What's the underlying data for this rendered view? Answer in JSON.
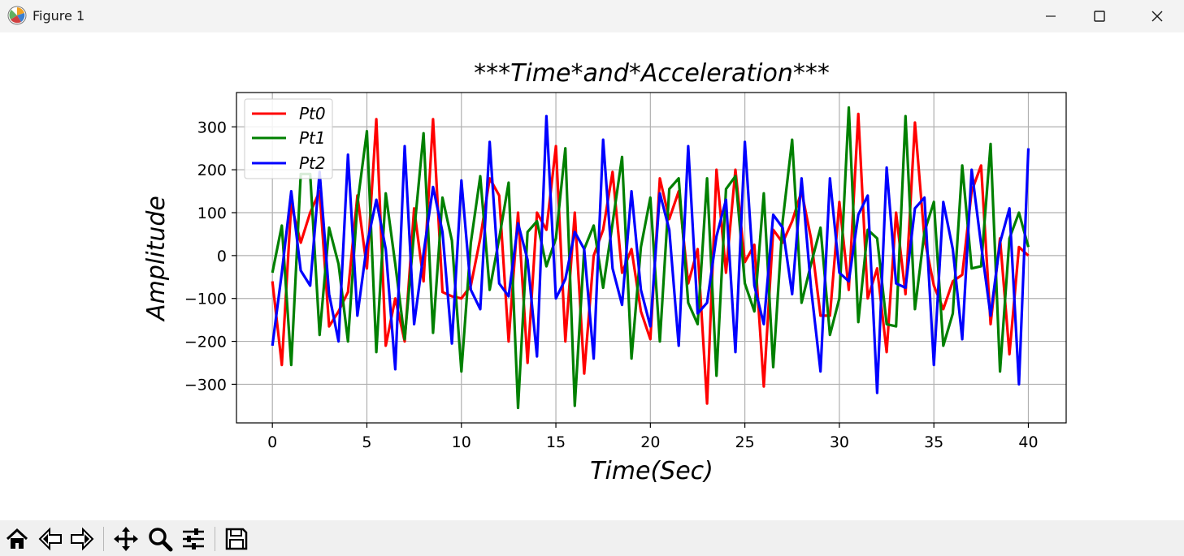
{
  "window": {
    "title": "Figure 1",
    "icon": "matplotlib-icon",
    "controls": [
      "minimize-icon",
      "maximize-icon",
      "close-icon"
    ]
  },
  "toolbar": {
    "buttons": [
      "home-icon",
      "back-icon",
      "forward-icon",
      "pan-icon",
      "zoom-icon",
      "configure-subplots-icon",
      "save-icon"
    ]
  },
  "chart_data": {
    "type": "line",
    "title": "***Time*and*Acceleration***",
    "xlabel": "Time(Sec)",
    "ylabel": "Amplitude",
    "xlim": [
      -1.9,
      42
    ],
    "ylim": [
      -390,
      380
    ],
    "xticks": [
      0,
      5,
      10,
      15,
      20,
      25,
      30,
      35,
      40
    ],
    "yticks": [
      -300,
      -200,
      -100,
      0,
      100,
      200,
      300
    ],
    "xtick_labels": [
      "0",
      "5",
      "10",
      "15",
      "20",
      "25",
      "30",
      "35",
      "40"
    ],
    "ytick_labels": [
      "−300",
      "−200",
      "−100",
      "0",
      "100",
      "200",
      "300"
    ],
    "grid": true,
    "legend_position": "upper-left",
    "x": [
      0,
      0.5,
      1,
      1.5,
      2,
      2.5,
      3,
      3.5,
      4,
      4.5,
      5,
      5.5,
      6,
      6.5,
      7,
      7.5,
      8,
      8.5,
      9,
      9.5,
      10,
      10.5,
      11,
      11.5,
      12,
      12.5,
      13,
      13.5,
      14,
      14.5,
      15,
      15.5,
      16,
      16.5,
      17,
      17.5,
      18,
      18.5,
      19,
      19.5,
      20,
      20.5,
      21,
      21.5,
      22,
      22.5,
      23,
      23.5,
      24,
      24.5,
      25,
      25.5,
      26,
      26.5,
      27,
      27.5,
      28,
      28.5,
      29,
      29.5,
      30,
      30.5,
      31,
      31.5,
      32,
      32.5,
      33,
      33.5,
      34,
      34.5,
      35,
      35.5,
      36,
      36.5,
      37,
      37.5,
      38,
      38.5,
      39,
      39.5,
      40
    ],
    "series": [
      {
        "name": "Pt0",
        "color": "#ff0000",
        "values": [
          -60,
          -255,
          120,
          30,
          100,
          150,
          -165,
          -130,
          -85,
          140,
          -30,
          318,
          -210,
          -100,
          -200,
          110,
          -60,
          318,
          -85,
          -95,
          -100,
          -70,
          40,
          180,
          140,
          -200,
          100,
          -250,
          100,
          60,
          255,
          -200,
          100,
          -275,
          0,
          60,
          195,
          -40,
          15,
          -130,
          -195,
          180,
          85,
          150,
          -65,
          15,
          -345,
          200,
          -40,
          200,
          -15,
          25,
          -305,
          60,
          30,
          80,
          150,
          40,
          -140,
          -140,
          125,
          -80,
          330,
          -100,
          -30,
          -225,
          100,
          -90,
          310,
          40,
          -70,
          -125,
          -60,
          -45,
          150,
          210,
          -160,
          40,
          -230,
          20,
          0
        ]
      },
      {
        "name": "Pt1",
        "color": "#008000",
        "values": [
          -40,
          70,
          -255,
          190,
          190,
          -185,
          65,
          -20,
          -200,
          120,
          290,
          -225,
          145,
          -20,
          -195,
          55,
          285,
          -180,
          135,
          35,
          -270,
          30,
          185,
          -80,
          40,
          170,
          -355,
          55,
          80,
          -25,
          40,
          250,
          -350,
          15,
          70,
          -75,
          75,
          230,
          -240,
          20,
          135,
          -200,
          155,
          180,
          -110,
          -160,
          180,
          -280,
          155,
          185,
          -65,
          -130,
          145,
          -260,
          80,
          270,
          -110,
          -20,
          65,
          -185,
          -100,
          345,
          -155,
          60,
          40,
          -160,
          -165,
          325,
          -125,
          55,
          125,
          -210,
          -135,
          210,
          -30,
          -25,
          260,
          -270,
          40,
          100,
          20
        ]
      },
      {
        "name": "Pt2",
        "color": "#0000ff",
        "values": [
          -210,
          -40,
          150,
          -35,
          -70,
          195,
          -90,
          -200,
          235,
          -140,
          25,
          130,
          15,
          -265,
          255,
          -160,
          5,
          160,
          55,
          -205,
          175,
          -80,
          -125,
          265,
          -65,
          -95,
          75,
          -10,
          -235,
          325,
          -100,
          -55,
          55,
          15,
          -240,
          270,
          -30,
          -115,
          150,
          -80,
          -165,
          145,
          60,
          -210,
          255,
          -135,
          -110,
          45,
          130,
          -225,
          265,
          -70,
          -160,
          95,
          65,
          -90,
          180,
          -75,
          -270,
          180,
          -40,
          -60,
          95,
          140,
          -320,
          205,
          -65,
          -75,
          110,
          135,
          -255,
          125,
          15,
          -195,
          200,
          25,
          -140,
          30,
          110,
          -300,
          250
        ]
      }
    ]
  }
}
